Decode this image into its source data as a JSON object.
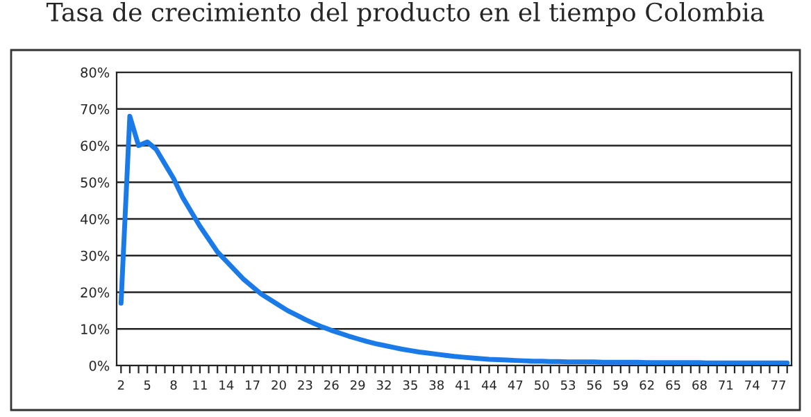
{
  "chart_data": {
    "type": "line",
    "title": "Tasa de crecimiento del producto en el tiempo Colombia",
    "categories": [
      "2",
      null,
      null,
      "5",
      null,
      null,
      "8",
      null,
      null,
      "11",
      null,
      null,
      "14",
      null,
      null,
      "17",
      null,
      null,
      "20",
      null,
      null,
      "23",
      null,
      null,
      "26",
      null,
      null,
      "29",
      null,
      null,
      "32",
      null,
      null,
      "35",
      null,
      null,
      "38",
      null,
      null,
      "41",
      null,
      null,
      "44",
      null,
      null,
      "47",
      null,
      null,
      "50",
      null,
      null,
      "53",
      null,
      null,
      "56",
      null,
      null,
      "59",
      null,
      null,
      "62",
      null,
      null,
      "65",
      null,
      null,
      "68",
      null,
      null,
      "71",
      null,
      null,
      "74",
      null,
      null,
      "77",
      null
    ],
    "series": [
      {
        "color": "#1a7ae8",
        "values": [
          17,
          68,
          60,
          61,
          59,
          55,
          51,
          46,
          42,
          38,
          34.5,
          31,
          28.5,
          26,
          23.5,
          21.5,
          19.5,
          18,
          16.5,
          15,
          13.8,
          12.6,
          11.5,
          10.5,
          9.6,
          8.8,
          8,
          7.3,
          6.6,
          6,
          5.5,
          5,
          4.5,
          4.1,
          3.7,
          3.4,
          3.1,
          2.8,
          2.5,
          2.3,
          2.1,
          1.9,
          1.7,
          1.6,
          1.5,
          1.4,
          1.3,
          1.2,
          1.2,
          1.1,
          1.1,
          1,
          1,
          1,
          1,
          0.9,
          0.9,
          0.9,
          0.9,
          0.9,
          0.8,
          0.8,
          0.8,
          0.8,
          0.8,
          0.8,
          0.8,
          0.7,
          0.7,
          0.7,
          0.7,
          0.7,
          0.7,
          0.7,
          0.7,
          0.7,
          0.7
        ]
      }
    ],
    "ylim": [
      0,
      80
    ],
    "yticks": [
      {
        "value": 0,
        "label": "0%"
      },
      {
        "value": 10,
        "label": "10%"
      },
      {
        "value": 20,
        "label": "20%"
      },
      {
        "value": 30,
        "label": "30%"
      },
      {
        "value": 40,
        "label": "40%"
      },
      {
        "value": 50,
        "label": "50%"
      },
      {
        "value": 60,
        "label": "60%"
      },
      {
        "value": 70,
        "label": "70%"
      },
      {
        "value": 80,
        "label": "80%"
      }
    ],
    "grid": "y",
    "legend": false
  }
}
